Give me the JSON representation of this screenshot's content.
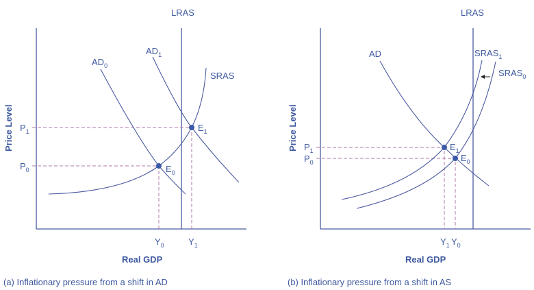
{
  "colors": {
    "curve": "#4a5aa0",
    "text": "#3f5aa0",
    "guide": "#b07aaa",
    "point": "#3a5aa8"
  },
  "panel_a": {
    "caption": "(a) Inflationary pressure from a shift in AD",
    "x_axis_label": "Real GDP",
    "y_axis_label": "Price Level",
    "lras": "LRAS",
    "ad0": {
      "main": "AD",
      "sub": "0"
    },
    "ad1": {
      "main": "AD",
      "sub": "1"
    },
    "sras": "SRAS",
    "e0": {
      "main": "E",
      "sub": "0"
    },
    "e1": {
      "main": "E",
      "sub": "1"
    },
    "p0": {
      "main": "P",
      "sub": "0"
    },
    "p1": {
      "main": "P",
      "sub": "1"
    },
    "y0": {
      "main": "Y",
      "sub": "0"
    },
    "y1": {
      "main": "Y",
      "sub": "1"
    }
  },
  "panel_b": {
    "caption": "(b) Inflationary pressure from a shift in AS",
    "x_axis_label": "Real GDP",
    "y_axis_label": "Price Level",
    "lras": "LRAS",
    "ad": "AD",
    "sras1": {
      "main": "SRAS",
      "sub": "1"
    },
    "sras0": {
      "main": "SRAS",
      "sub": "0"
    },
    "e0": {
      "main": "E",
      "sub": "0"
    },
    "e1": {
      "main": "E",
      "sub": "1"
    },
    "p0": {
      "main": "P",
      "sub": "0"
    },
    "p1": {
      "main": "P",
      "sub": "1"
    },
    "y0": {
      "main": "Y",
      "sub": "0"
    },
    "y1": {
      "main": "Y",
      "sub": "1"
    },
    "shift_arrow": "arrow-left-icon"
  }
}
